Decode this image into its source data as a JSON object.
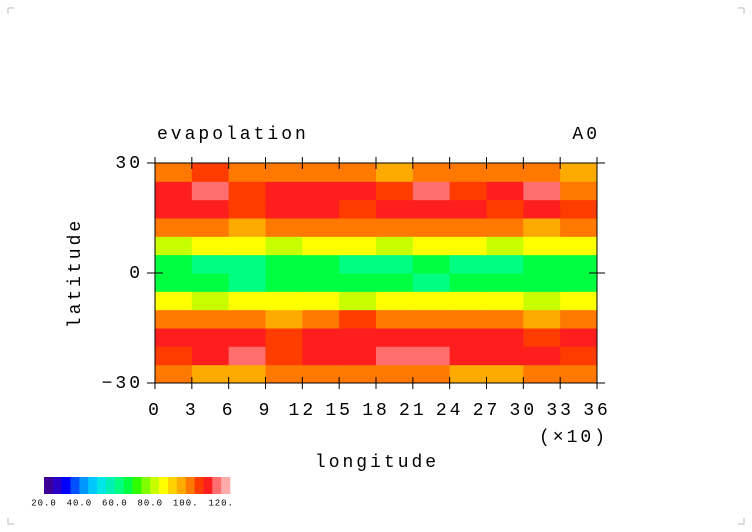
{
  "chart_data": {
    "type": "heatmap",
    "title": "evapolation",
    "subtitle": "A0",
    "x_label": "longitude",
    "x_unit_label": "(×10)",
    "y_label": "latitude",
    "xlim": [
      0,
      36
    ],
    "xticks": [
      0,
      3,
      6,
      9,
      12,
      15,
      18,
      21,
      24,
      27,
      30,
      33,
      36
    ],
    "ylim": [
      -30,
      30
    ],
    "yticks": [
      {
        "value": -30,
        "label": "−30"
      },
      0,
      30
    ],
    "x": [
      1.5,
      4.5,
      7.5,
      10.5,
      13.5,
      16.5,
      19.5,
      22.5,
      25.5,
      28.5,
      31.5,
      34.5
    ],
    "y": [
      -27.5,
      -22.5,
      -17.5,
      -12.5,
      -7.5,
      -2.5,
      2.5,
      7.5,
      12.5,
      17.5,
      22.5,
      27.5
    ],
    "values": [
      [
        100,
        95,
        98,
        102,
        100,
        100,
        104,
        100,
        98,
        96,
        100,
        100
      ],
      [
        108,
        112,
        116,
        108,
        112,
        110,
        116,
        118,
        112,
        110,
        112,
        108
      ],
      [
        112,
        110,
        114,
        106,
        110,
        112,
        112,
        114,
        110,
        112,
        108,
        110
      ],
      [
        104,
        100,
        102,
        98,
        104,
        106,
        100,
        104,
        102,
        100,
        98,
        100
      ],
      [
        86,
        84,
        88,
        85,
        87,
        84,
        86,
        88,
        85,
        86,
        84,
        86
      ],
      [
        68,
        66,
        64,
        67,
        65,
        66,
        68,
        64,
        66,
        65,
        67,
        66
      ],
      [
        66,
        64,
        62,
        65,
        66,
        64,
        63,
        66,
        64,
        62,
        65,
        66
      ],
      [
        84,
        86,
        85,
        84,
        87,
        86,
        84,
        85,
        86,
        84,
        86,
        88
      ],
      [
        100,
        102,
        98,
        100,
        104,
        102,
        100,
        104,
        102,
        100,
        98,
        102
      ],
      [
        110,
        112,
        108,
        110,
        112,
        108,
        114,
        110,
        112,
        108,
        110,
        106
      ],
      [
        112,
        118,
        108,
        114,
        112,
        110,
        106,
        116,
        108,
        110,
        118,
        104
      ],
      [
        102,
        106,
        100,
        104,
        102,
        100,
        98,
        104,
        100,
        102,
        104,
        96
      ]
    ],
    "colorbar": {
      "levels": [
        20,
        25,
        30,
        35,
        40,
        45,
        50,
        55,
        60,
        65,
        70,
        75,
        80,
        85,
        90,
        95,
        100,
        105,
        110,
        115,
        120,
        125
      ],
      "colors": [
        "#3c0096",
        "#2800c8",
        "#0000ff",
        "#0050ff",
        "#0096ff",
        "#00c8ff",
        "#00e6e6",
        "#00f0b4",
        "#00ff80",
        "#00ff40",
        "#30ff00",
        "#80ff00",
        "#c8ff00",
        "#ffff00",
        "#ffd200",
        "#ffaa00",
        "#ff7800",
        "#ff3c00",
        "#ff1e1e",
        "#ff6e6e",
        "#ffaaaa"
      ],
      "ticks": [
        {
          "value": 20,
          "label": "20.0"
        },
        {
          "value": 40,
          "label": "40.0"
        },
        {
          "value": 60,
          "label": "60.0"
        },
        {
          "value": 80,
          "label": "80.0"
        },
        {
          "value": 100,
          "label": "100."
        },
        {
          "value": 120,
          "label": "120."
        }
      ]
    }
  }
}
